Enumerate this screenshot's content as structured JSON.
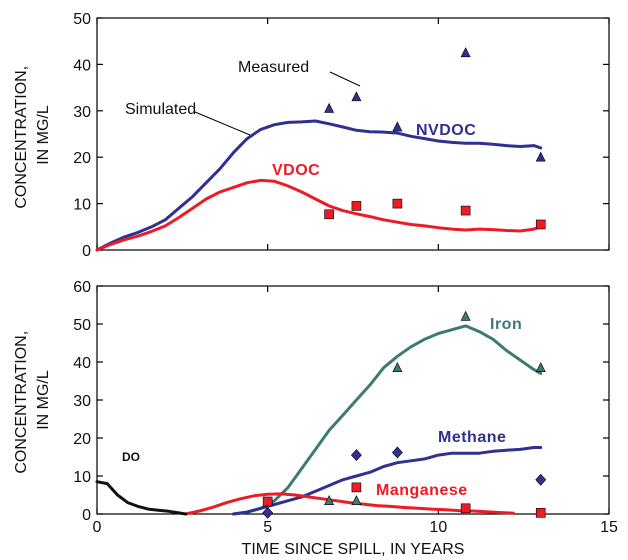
{
  "chart_data": [
    {
      "type": "line",
      "panel": "top",
      "ylabel_lines": [
        "CONCENTRATION,",
        "IN MG/L"
      ],
      "xlim": [
        0,
        15
      ],
      "ylim": [
        0,
        50
      ],
      "yticks": [
        0,
        10,
        20,
        30,
        40,
        50
      ],
      "xticks": [
        0,
        5,
        10,
        15
      ],
      "show_x_tick_labels": false,
      "annotations": {
        "simulated": "Simulated",
        "measured": "Measured"
      },
      "series": [
        {
          "name": "NVDOC",
          "kind": "simulated",
          "color": "#2e3192",
          "x": [
            0,
            0.4,
            0.8,
            1.2,
            1.6,
            2.0,
            2.4,
            2.8,
            3.2,
            3.6,
            4.0,
            4.4,
            4.8,
            5.2,
            5.6,
            6.0,
            6.4,
            6.8,
            7.2,
            7.6,
            8.0,
            8.4,
            8.8,
            9.2,
            9.6,
            10.0,
            10.4,
            10.8,
            11.2,
            11.6,
            12.0,
            12.4,
            12.8,
            13.0
          ],
          "y": [
            0,
            1.5,
            2.8,
            3.8,
            5.0,
            6.5,
            9.0,
            11.5,
            14.5,
            17.5,
            21.0,
            24.0,
            26.0,
            27.0,
            27.5,
            27.6,
            27.8,
            27.2,
            26.5,
            25.8,
            25.5,
            25.4,
            25.2,
            24.5,
            24.0,
            23.5,
            23.2,
            23.0,
            23.0,
            22.8,
            22.5,
            22.3,
            22.5,
            22.0
          ]
        },
        {
          "name": "VDOC",
          "kind": "simulated",
          "color": "#ed1c24",
          "x": [
            0,
            0.4,
            0.8,
            1.2,
            1.6,
            2.0,
            2.4,
            2.8,
            3.2,
            3.6,
            4.0,
            4.4,
            4.8,
            5.2,
            5.6,
            6.0,
            6.4,
            6.8,
            7.2,
            7.6,
            8.0,
            8.4,
            8.8,
            9.2,
            9.6,
            10.0,
            10.4,
            10.8,
            11.2,
            11.6,
            12.0,
            12.4,
            12.8,
            13.0
          ],
          "y": [
            0,
            1.2,
            2.2,
            3.0,
            4.0,
            5.2,
            7.0,
            9.0,
            11.0,
            12.5,
            13.5,
            14.5,
            15.0,
            14.8,
            13.8,
            12.5,
            11.0,
            9.5,
            8.5,
            7.8,
            7.2,
            6.5,
            6.0,
            5.5,
            5.2,
            4.8,
            4.5,
            4.3,
            4.5,
            4.4,
            4.2,
            4.1,
            4.5,
            5.0
          ]
        },
        {
          "name": "NVDOC measured",
          "kind": "measured",
          "marker": "triangle",
          "color": "#2e3192",
          "x": [
            6.8,
            7.6,
            8.8,
            10.8,
            13.0
          ],
          "y": [
            30.5,
            33.0,
            26.5,
            42.5,
            20.0
          ]
        },
        {
          "name": "VDOC measured",
          "kind": "measured",
          "marker": "square",
          "color": "#ed1c24",
          "x": [
            6.8,
            7.6,
            8.8,
            10.8,
            13.0
          ],
          "y": [
            7.7,
            9.5,
            10.0,
            8.5,
            5.5
          ]
        }
      ]
    },
    {
      "type": "line",
      "panel": "bottom",
      "ylabel_lines": [
        "CONCENTRATION,",
        "IN MG/L"
      ],
      "xlabel": "TIME SINCE SPILL, IN YEARS",
      "xlim": [
        0,
        15
      ],
      "ylim": [
        0,
        60
      ],
      "yticks": [
        0,
        10,
        20,
        30,
        40,
        50,
        60
      ],
      "xticks": [
        0,
        5,
        10,
        15
      ],
      "show_x_tick_labels": true,
      "series": [
        {
          "name": "Iron",
          "kind": "simulated",
          "color": "#3d7a72",
          "x": [
            4.0,
            4.4,
            4.8,
            5.2,
            5.6,
            6.0,
            6.4,
            6.8,
            7.2,
            7.6,
            8.0,
            8.4,
            8.8,
            9.2,
            9.6,
            10.0,
            10.4,
            10.8,
            11.2,
            11.6,
            12.0,
            12.4,
            12.8,
            13.0
          ],
          "y": [
            0,
            0.5,
            1.5,
            3.5,
            7.0,
            12.0,
            17.0,
            22.0,
            26.0,
            30.0,
            34.0,
            38.5,
            41.5,
            44.0,
            46.0,
            47.5,
            48.5,
            49.5,
            48.0,
            46.0,
            43.0,
            40.5,
            38.0,
            37.0
          ]
        },
        {
          "name": "Methane",
          "kind": "simulated",
          "color": "#2e3192",
          "x": [
            4.0,
            4.4,
            4.8,
            5.2,
            5.6,
            6.0,
            6.4,
            6.8,
            7.2,
            7.6,
            8.0,
            8.4,
            8.8,
            9.2,
            9.6,
            10.0,
            10.4,
            10.8,
            11.2,
            11.6,
            12.0,
            12.4,
            12.8,
            13.0
          ],
          "y": [
            0,
            0.5,
            1.5,
            2.5,
            3.5,
            4.5,
            6.0,
            7.5,
            9.0,
            10.0,
            11.0,
            12.5,
            13.5,
            14.0,
            14.5,
            15.5,
            16.0,
            16.0,
            16.0,
            16.5,
            16.8,
            17.0,
            17.5,
            17.5
          ]
        },
        {
          "name": "Manganese",
          "kind": "simulated",
          "color": "#ed1c24",
          "x": [
            2.6,
            3.0,
            3.4,
            3.8,
            4.2,
            4.6,
            5.0,
            5.4,
            5.8,
            6.2,
            6.6,
            7.0,
            7.4,
            7.8,
            8.2,
            8.6,
            9.0,
            9.4,
            9.8,
            10.2,
            10.6,
            11.0,
            11.4,
            11.8,
            12.2
          ],
          "y": [
            0,
            0.8,
            1.8,
            3.0,
            4.0,
            4.8,
            5.2,
            5.3,
            5.0,
            4.5,
            4.0,
            3.5,
            3.0,
            2.6,
            2.2,
            2.0,
            1.7,
            1.5,
            1.3,
            1.1,
            0.9,
            0.8,
            0.6,
            0.4,
            0.2
          ]
        },
        {
          "name": "DO",
          "kind": "simulated",
          "color": "#111111",
          "x": [
            0,
            0.3,
            0.6,
            0.9,
            1.2,
            1.5,
            1.8,
            2.1,
            2.4,
            2.6
          ],
          "y": [
            8.5,
            8.0,
            5.0,
            3.0,
            2.0,
            1.3,
            1.0,
            0.7,
            0.3,
            0
          ]
        },
        {
          "name": "Iron measured",
          "kind": "measured",
          "marker": "triangle",
          "color": "#3d7a72",
          "x": [
            6.8,
            7.6,
            8.8,
            10.8,
            13.0
          ],
          "y": [
            3.5,
            3.5,
            38.5,
            52.0,
            38.5
          ]
        },
        {
          "name": "Methane measured",
          "kind": "measured",
          "marker": "diamond",
          "color": "#2e3192",
          "x": [
            5.0,
            7.6,
            8.8,
            13.0
          ],
          "y": [
            0.3,
            15.5,
            16.2,
            9.0
          ]
        },
        {
          "name": "Manganese measured",
          "kind": "measured",
          "marker": "square",
          "color": "#ed1c24",
          "x": [
            5.0,
            7.6,
            10.8,
            13.0
          ],
          "y": [
            3.3,
            7.0,
            1.5,
            0.3
          ]
        }
      ]
    }
  ]
}
